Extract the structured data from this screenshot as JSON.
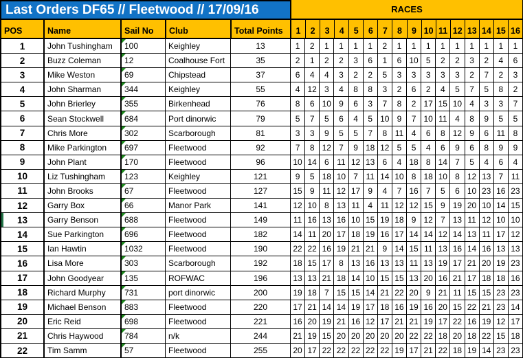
{
  "title": "Last Orders DF65 // Fleetwood // 17/09/16",
  "races_label": "RACES",
  "columns": [
    "POS",
    "Name",
    "Sail No",
    "Club",
    "Total Points"
  ],
  "race_numbers": [
    "1",
    "2",
    "3",
    "4",
    "5",
    "6",
    "7",
    "8",
    "9",
    "10",
    "11",
    "12",
    "13",
    "14",
    "15",
    "16"
  ],
  "colors": {
    "title_bg": "#1273C6",
    "header_bg": "#FFC000",
    "grid_border": "#000000",
    "triangle_green": "#1E8A1E",
    "marker_green": "#217346",
    "title_text": "#FFFFFF"
  },
  "rows": [
    {
      "pos": "1",
      "name": "John Tushingham",
      "sail_no": "100",
      "club": "Keighley",
      "total_points": "13",
      "races": [
        1,
        2,
        1,
        1,
        1,
        1,
        2,
        1,
        1,
        1,
        1,
        1,
        1,
        1,
        1,
        1
      ]
    },
    {
      "pos": "2",
      "name": "Buzz Coleman",
      "sail_no": "12",
      "club": "Coalhouse Fort",
      "total_points": "35",
      "races": [
        2,
        1,
        2,
        2,
        3,
        6,
        1,
        6,
        10,
        5,
        2,
        2,
        3,
        2,
        4,
        6
      ]
    },
    {
      "pos": "3",
      "name": "Mike Weston",
      "sail_no": "69",
      "club": "Chipstead",
      "total_points": "37",
      "races": [
        6,
        4,
        4,
        3,
        2,
        2,
        5,
        3,
        3,
        3,
        3,
        3,
        2,
        7,
        2,
        3
      ]
    },
    {
      "pos": "4",
      "name": "John Sharman",
      "sail_no": "344",
      "club": "Keighley",
      "total_points": "55",
      "races": [
        4,
        12,
        3,
        4,
        8,
        8,
        3,
        2,
        6,
        2,
        4,
        5,
        7,
        5,
        8,
        2
      ]
    },
    {
      "pos": "5",
      "name": "John Brierley",
      "sail_no": "355",
      "club": "Birkenhead",
      "total_points": "76",
      "races": [
        8,
        6,
        10,
        9,
        6,
        3,
        7,
        8,
        2,
        17,
        15,
        10,
        4,
        3,
        3,
        7
      ]
    },
    {
      "pos": "6",
      "name": "Sean Stockwell",
      "sail_no": "684",
      "club": "Port dinorwic",
      "total_points": "79",
      "races": [
        5,
        7,
        5,
        6,
        4,
        5,
        10,
        9,
        7,
        10,
        11,
        4,
        8,
        9,
        5,
        5
      ]
    },
    {
      "pos": "7",
      "name": "Chris More",
      "sail_no": "302",
      "club": "Scarborough",
      "total_points": "81",
      "races": [
        3,
        3,
        9,
        5,
        5,
        7,
        8,
        11,
        4,
        6,
        8,
        12,
        9,
        6,
        11,
        8
      ]
    },
    {
      "pos": "8",
      "name": "Mike Parkington",
      "sail_no": "697",
      "club": "Fleetwood",
      "total_points": "92",
      "races": [
        7,
        8,
        12,
        7,
        9,
        18,
        12,
        5,
        5,
        4,
        6,
        9,
        6,
        8,
        9,
        9
      ]
    },
    {
      "pos": "9",
      "name": "John Plant",
      "sail_no": "170",
      "club": "Fleetwood",
      "total_points": "96",
      "races": [
        10,
        14,
        6,
        11,
        12,
        13,
        6,
        4,
        18,
        8,
        14,
        7,
        5,
        4,
        6,
        4
      ]
    },
    {
      "pos": "10",
      "name": "Liz Tushingham",
      "sail_no": "123",
      "club": "Keighley",
      "total_points": "121",
      "races": [
        9,
        5,
        18,
        10,
        7,
        11,
        14,
        10,
        8,
        18,
        10,
        8,
        12,
        13,
        7,
        11
      ]
    },
    {
      "pos": "11",
      "name": "John Brooks",
      "sail_no": "67",
      "club": "Fleetwood",
      "total_points": "127",
      "races": [
        15,
        9,
        11,
        12,
        17,
        9,
        4,
        7,
        16,
        7,
        5,
        6,
        10,
        23,
        16,
        23
      ]
    },
    {
      "pos": "12",
      "name": "Garry Box",
      "sail_no": "66",
      "club": "Manor Park",
      "total_points": "141",
      "races": [
        12,
        10,
        8,
        13,
        11,
        4,
        11,
        12,
        12,
        15,
        9,
        19,
        20,
        10,
        14,
        15
      ]
    },
    {
      "pos": "13",
      "name": "Garry Benson",
      "sail_no": "688",
      "club": "Fleetwood",
      "total_points": "149",
      "marker": true,
      "races": [
        11,
        16,
        13,
        16,
        10,
        15,
        19,
        18,
        9,
        12,
        7,
        13,
        11,
        12,
        10,
        10
      ]
    },
    {
      "pos": "14",
      "name": "Sue Parkington",
      "sail_no": "696",
      "club": "Fleetwood",
      "total_points": "182",
      "races": [
        14,
        11,
        20,
        17,
        18,
        19,
        16,
        17,
        14,
        14,
        12,
        14,
        13,
        11,
        17,
        12
      ]
    },
    {
      "pos": "15",
      "name": "Ian Hawtin",
      "sail_no": "1032",
      "club": "Fleetwood",
      "total_points": "190",
      "races": [
        22,
        22,
        16,
        19,
        21,
        21,
        9,
        14,
        15,
        11,
        13,
        16,
        14,
        16,
        13,
        13
      ]
    },
    {
      "pos": "16",
      "name": "Lisa More",
      "sail_no": "303",
      "club": "Scarborough",
      "total_points": "192",
      "races": [
        18,
        15,
        17,
        8,
        13,
        16,
        13,
        13,
        11,
        13,
        19,
        17,
        21,
        20,
        19,
        23
      ]
    },
    {
      "pos": "17",
      "name": "John Goodyear",
      "sail_no": "135",
      "club": "ROFWAC",
      "total_points": "196",
      "races": [
        13,
        13,
        21,
        18,
        14,
        10,
        15,
        15,
        13,
        20,
        16,
        21,
        17,
        18,
        18,
        16
      ]
    },
    {
      "pos": "18",
      "name": "Richard Murphy",
      "sail_no": "731",
      "club": "port dinorwic",
      "total_points": "200",
      "races": [
        19,
        18,
        7,
        15,
        15,
        14,
        21,
        22,
        20,
        9,
        21,
        11,
        15,
        15,
        23,
        23
      ]
    },
    {
      "pos": "19",
      "name": "Michael Benson",
      "sail_no": "883",
      "club": "Fleetwood",
      "total_points": "220",
      "races": [
        17,
        21,
        14,
        14,
        19,
        17,
        18,
        16,
        19,
        16,
        20,
        15,
        22,
        21,
        23,
        14
      ]
    },
    {
      "pos": "20",
      "name": "Eric Reid",
      "sail_no": "698",
      "club": "Fleetwood",
      "total_points": "221",
      "races": [
        16,
        20,
        19,
        21,
        16,
        12,
        17,
        21,
        21,
        19,
        17,
        22,
        16,
        19,
        12,
        17
      ]
    },
    {
      "pos": "21",
      "name": "Chris Haywood",
      "sail_no": "784",
      "club": "n/k",
      "total_points": "244",
      "races": [
        21,
        19,
        15,
        20,
        20,
        20,
        20,
        20,
        22,
        22,
        18,
        20,
        18,
        22,
        15,
        18
      ]
    },
    {
      "pos": "22",
      "name": "Tim Samm",
      "sail_no": "57",
      "club": "Fleetwood",
      "total_points": "255",
      "races": [
        20,
        17,
        22,
        22,
        22,
        22,
        22,
        19,
        17,
        21,
        22,
        18,
        19,
        14,
        23,
        23
      ]
    }
  ]
}
